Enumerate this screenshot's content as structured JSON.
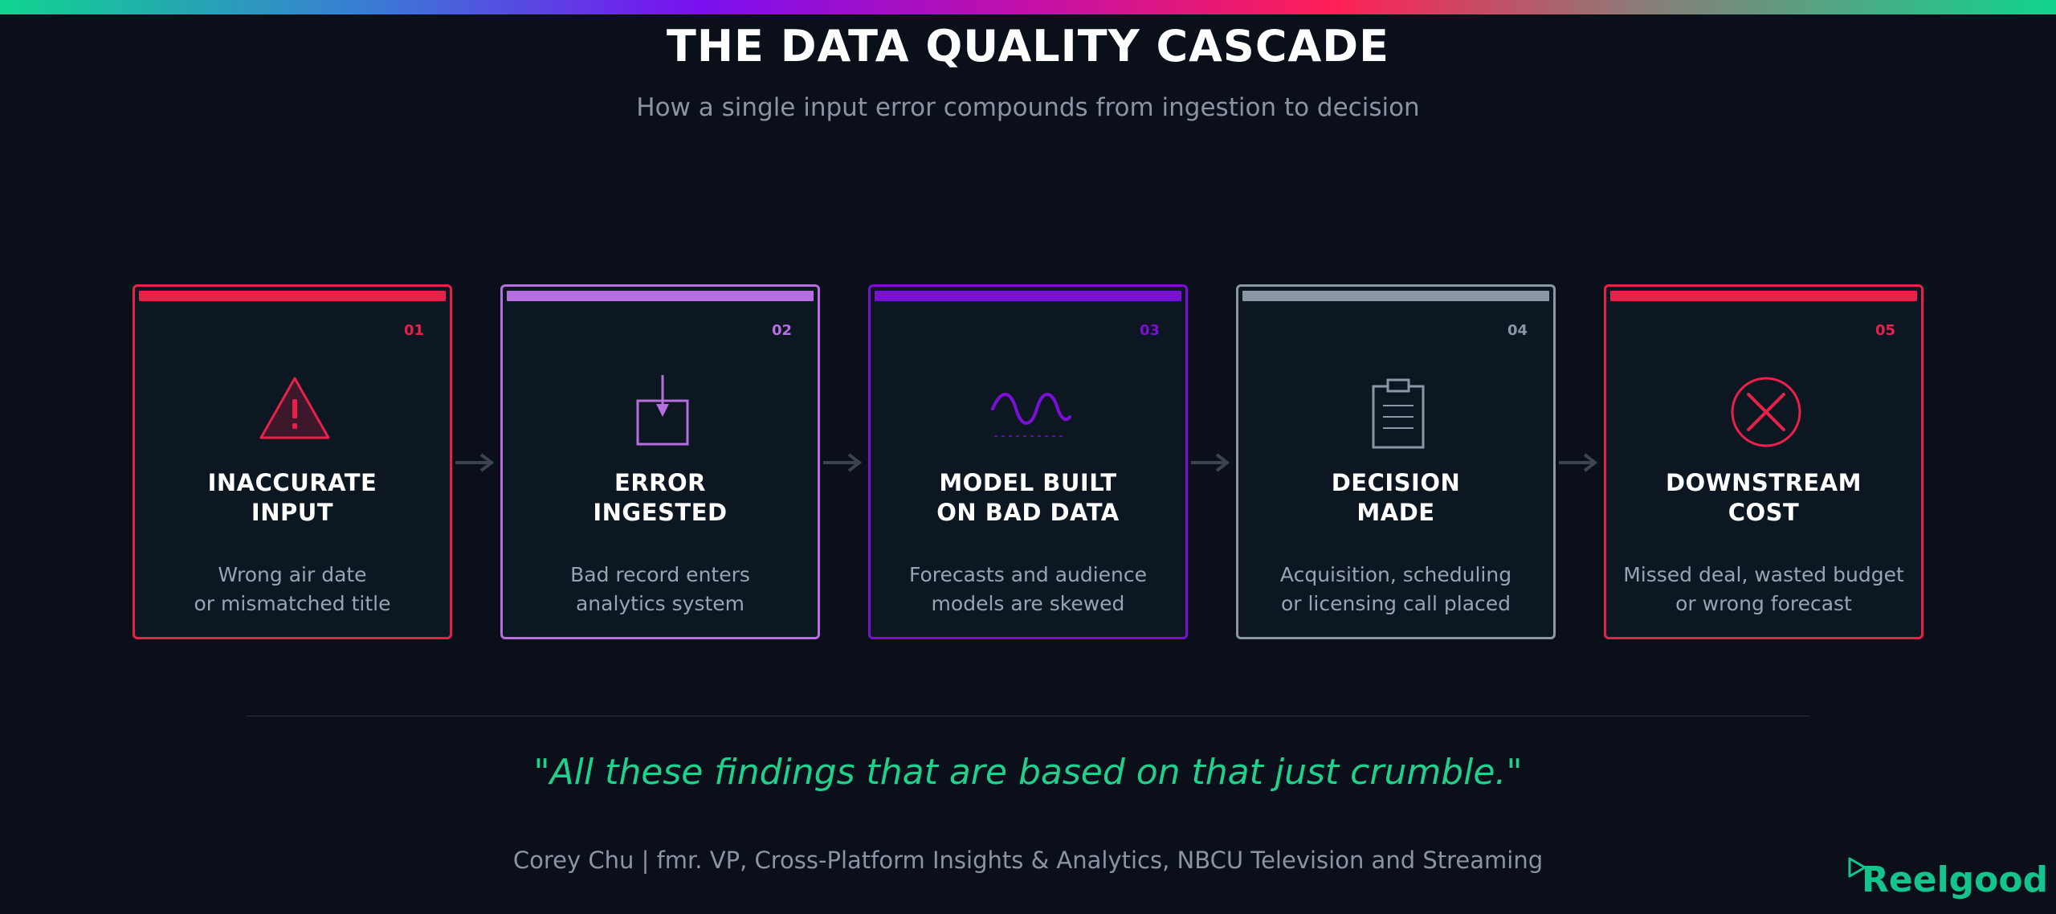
{
  "header": {
    "title": "THE DATA QUALITY CASCADE",
    "subtitle": "How a single input error compounds from ingestion to decision"
  },
  "steps": [
    {
      "number": "01",
      "icon": "warning-triangle-icon",
      "color": "#e8214b",
      "label_lines": [
        "INACCURATE",
        "INPUT"
      ],
      "desc_lines": [
        "Wrong air date",
        "or mismatched title"
      ]
    },
    {
      "number": "02",
      "icon": "ingest-arrow-into-box-icon",
      "color": "#b66ee0",
      "label_lines": [
        "ERROR",
        "INGESTED"
      ],
      "desc_lines": [
        "Bad record enters",
        "analytics system"
      ]
    },
    {
      "number": "03",
      "icon": "sine-wave-icon",
      "color": "#7a0fd6",
      "label_lines": [
        "MODEL BUILT",
        "ON BAD DATA"
      ],
      "desc_lines": [
        "Forecasts and audience",
        "models are skewed"
      ]
    },
    {
      "number": "04",
      "icon": "clipboard-icon",
      "color": "#8a98a3",
      "label_lines": [
        "DECISION",
        "MADE"
      ],
      "desc_lines": [
        "Acquisition, scheduling",
        "or licensing call placed"
      ]
    },
    {
      "number": "05",
      "icon": "x-circle-icon",
      "color": "#e8214b",
      "label_lines": [
        "DOWNSTREAM",
        "COST"
      ],
      "desc_lines": [
        "Missed deal, wasted budget",
        "or wrong forecast"
      ]
    }
  ],
  "quote": "\"All these findings that are based on that just crumble.\"",
  "attribution": "Corey Chu  |  fmr. VP, Cross-Platform Insights & Analytics, NBCU Television and Streaming",
  "logo": {
    "text": "Reelgood",
    "icon": "play-triangle-icon",
    "color": "#14c48c"
  },
  "colors": {
    "background": "#0b0f19",
    "card_background": "#0c1722",
    "arrow": "#3a4452",
    "quote": "#1fd18d",
    "muted_text": "#8a94a3"
  }
}
